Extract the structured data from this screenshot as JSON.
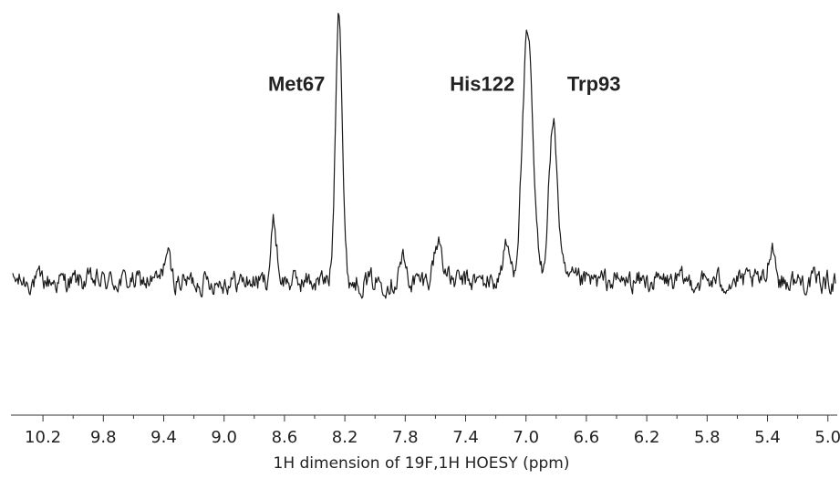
{
  "chart_data": {
    "type": "line",
    "title": "",
    "xlabel": "1H dimension of 19F,1H HOESY (ppm)",
    "ylabel": "",
    "x_axis_reversed": true,
    "xlim": [
      10.4,
      4.95
    ],
    "ylim": [
      -0.25,
      1.0
    ],
    "grid": false,
    "x_ticks": [
      "10.2",
      "9.8",
      "9.4",
      "9.0",
      "8.6",
      "8.2",
      "7.8",
      "7.4",
      "7.0",
      "6.6",
      "6.2",
      "5.8",
      "5.4",
      "5.0"
    ],
    "x_tick_values": [
      10.2,
      9.8,
      9.4,
      9.0,
      8.6,
      8.2,
      7.8,
      7.4,
      7.0,
      6.6,
      6.2,
      5.8,
      5.4,
      5.0
    ],
    "baseline": 0.05,
    "noise_amplitude": 0.045,
    "peaks": [
      {
        "label": "Met67",
        "x": 8.24,
        "height": 0.98,
        "width": 0.022
      },
      {
        "label": "His122",
        "x": 6.99,
        "height": 0.85,
        "width": 0.035
      },
      {
        "label": "Trp93",
        "x": 6.82,
        "height": 0.55,
        "width": 0.03
      }
    ],
    "minor_peaks": [
      {
        "x": 8.67,
        "height": 0.2,
        "width": 0.02
      },
      {
        "x": 7.58,
        "height": 0.14,
        "width": 0.03
      },
      {
        "x": 9.38,
        "height": 0.1,
        "width": 0.02
      },
      {
        "x": 5.37,
        "height": 0.14,
        "width": 0.02
      },
      {
        "x": 7.82,
        "height": 0.08,
        "width": 0.02
      },
      {
        "x": 7.13,
        "height": 0.12,
        "width": 0.025
      }
    ],
    "annotations": [
      {
        "text": "Met67",
        "x": 8.52,
        "y": 0.72
      },
      {
        "text": "His122",
        "x": 7.29,
        "y": 0.72
      },
      {
        "text": "Trp93",
        "x": 6.55,
        "y": 0.72
      }
    ]
  }
}
